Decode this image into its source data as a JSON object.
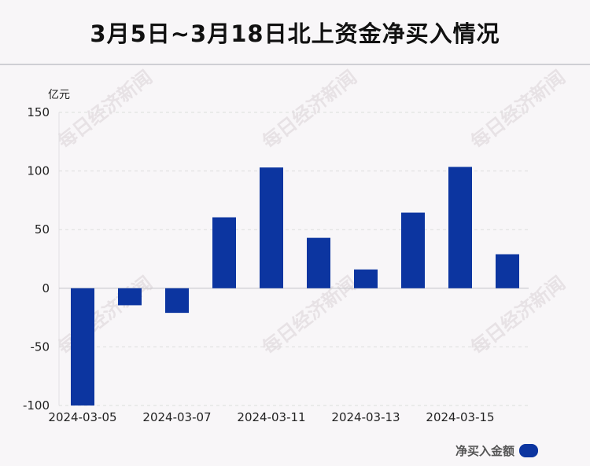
{
  "title": "3月5日~3月18日北上资金净买入情况",
  "watermark_text": "每日经济新闻",
  "colors": {
    "bar": "#0c35a0",
    "gridline": "#dddddd",
    "background": "#f8f6f8"
  },
  "legend": {
    "label": "净买入金额",
    "placement": "bottom-right"
  },
  "chart_data": {
    "type": "bar",
    "title": "3月5日~3月18日北上资金净买入情况",
    "ylabel": "亿元",
    "ylim": [
      -100,
      150
    ],
    "yticks": [
      150,
      100,
      50,
      0,
      -50,
      -100
    ],
    "grid": true,
    "xtick_labels": [
      "2024-03-05",
      "2024-03-07",
      "2024-03-11",
      "2024-03-13",
      "2024-03-15"
    ],
    "series": [
      {
        "name": "净买入金额",
        "values": [
          -100,
          -14.5,
          -21,
          60.5,
          103,
          43,
          16,
          64.5,
          103.5,
          29
        ]
      }
    ]
  }
}
